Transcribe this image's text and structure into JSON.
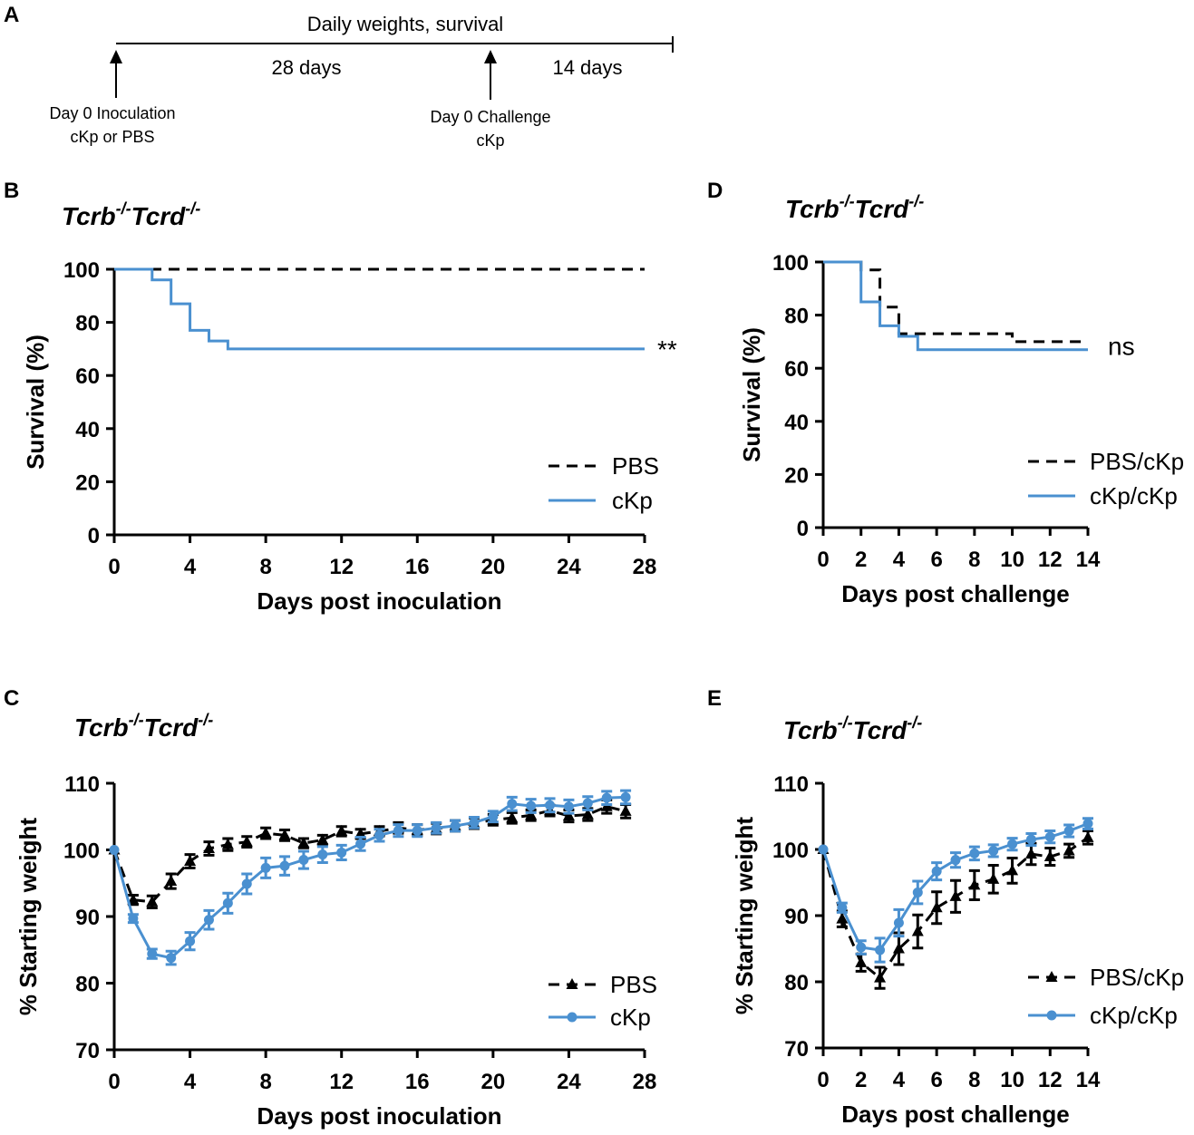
{
  "timeline": {
    "letter": "A",
    "top_label": "Daily weights, survival",
    "segment1_label": "28 days",
    "segment2_label": "14 days",
    "arrow1_line1": "Day 0 Inoculation",
    "arrow1_line2": "cKp or PBS",
    "arrow2_line1": "Day 0 Challenge",
    "arrow2_line2": "cKp"
  },
  "chart_data": [
    {
      "id": "B",
      "letter": "B",
      "type": "line",
      "style": "step",
      "title": {
        "main": "Tcrb",
        "sup1": "-/-",
        "main2": "Tcrd",
        "sup2": "-/-"
      },
      "xlabel": "Days post inoculation",
      "ylabel": "Survival (%)",
      "xlim": [
        0,
        28
      ],
      "ylim": [
        0,
        100
      ],
      "xticks": [
        0,
        4,
        8,
        12,
        16,
        20,
        24,
        28
      ],
      "yticks": [
        0,
        20,
        40,
        60,
        80,
        100
      ],
      "annotation": "**",
      "legend_position": "bottom-right",
      "series": [
        {
          "name": "PBS",
          "color": "#000000",
          "dashed": true,
          "x": [
            0,
            28
          ],
          "y": [
            100,
            100
          ]
        },
        {
          "name": "cKp",
          "color": "#4A90D0",
          "dashed": false,
          "x": [
            0,
            2,
            3,
            4,
            5,
            6,
            28
          ],
          "y": [
            100,
            96,
            87,
            77,
            73,
            70,
            70
          ]
        }
      ]
    },
    {
      "id": "D",
      "letter": "D",
      "type": "line",
      "style": "step",
      "title": {
        "main": "Tcrb",
        "sup1": "-/-",
        "main2": "Tcrd",
        "sup2": "-/-"
      },
      "xlabel": "Days post challenge",
      "ylabel": "Survival (%)",
      "xlim": [
        0,
        14
      ],
      "ylim": [
        0,
        100
      ],
      "xticks": [
        0,
        2,
        4,
        6,
        8,
        10,
        12,
        14
      ],
      "yticks": [
        0,
        20,
        40,
        60,
        80,
        100
      ],
      "annotation": "ns",
      "legend_position": "bottom-right",
      "series": [
        {
          "name": "PBS/cKp",
          "color": "#000000",
          "dashed": true,
          "x": [
            0,
            2,
            3,
            4,
            10,
            14
          ],
          "y": [
            100,
            97,
            83,
            73,
            70,
            70
          ]
        },
        {
          "name": "cKp/cKp",
          "color": "#4A90D0",
          "dashed": false,
          "x": [
            0,
            2,
            3,
            4,
            5,
            14
          ],
          "y": [
            100,
            85,
            76,
            72,
            67,
            67
          ]
        }
      ]
    },
    {
      "id": "C",
      "letter": "C",
      "type": "line",
      "style": "errorbar",
      "title": {
        "main": "Tcrb",
        "sup1": "-/-",
        "main2": "Tcrd",
        "sup2": "-/-"
      },
      "xlabel": "Days post inoculation",
      "ylabel": "% Starting weight",
      "xlim": [
        0,
        28
      ],
      "ylim": [
        70,
        110
      ],
      "xticks": [
        0,
        4,
        8,
        12,
        16,
        20,
        24,
        28
      ],
      "yticks": [
        70,
        80,
        90,
        100,
        110
      ],
      "legend_position": "bottom-right",
      "series": [
        {
          "name": "PBS",
          "color": "#000000",
          "dashed": true,
          "marker": "triangle",
          "x": [
            0,
            1,
            2,
            3,
            4,
            5,
            6,
            7,
            8,
            9,
            10,
            11,
            12,
            13,
            14,
            15,
            16,
            17,
            18,
            19,
            20,
            21,
            22,
            23,
            24,
            25,
            26,
            27
          ],
          "y": [
            100,
            92.5,
            92.2,
            95.3,
            98.3,
            100.2,
            100.8,
            101.2,
            102.5,
            102.2,
            101.0,
            101.5,
            102.8,
            102.4,
            102.8,
            103.3,
            103.0,
            103.2,
            103.6,
            104.0,
            104.5,
            104.8,
            105.2,
            105.9,
            105.1,
            105.3,
            106.5,
            105.8
          ],
          "err": [
            0,
            0.7,
            0.9,
            1.1,
            1.0,
            1.0,
            0.9,
            0.8,
            0.8,
            0.8,
            0.7,
            0.7,
            0.7,
            0.7,
            0.7,
            0.8,
            0.8,
            0.8,
            0.8,
            0.8,
            0.8,
            0.8,
            0.8,
            0.8,
            0.9,
            0.9,
            1.0,
            1.0
          ]
        },
        {
          "name": "cKp",
          "color": "#4A90D0",
          "dashed": false,
          "marker": "circle",
          "x": [
            0,
            1,
            2,
            3,
            4,
            5,
            6,
            7,
            8,
            9,
            10,
            11,
            12,
            13,
            14,
            15,
            16,
            17,
            18,
            19,
            20,
            21,
            22,
            23,
            24,
            25,
            26,
            27
          ],
          "y": [
            100,
            89.7,
            84.4,
            83.8,
            86.3,
            89.5,
            92.0,
            94.9,
            97.3,
            97.6,
            98.5,
            99.3,
            99.6,
            100.9,
            102.2,
            102.9,
            102.9,
            103.3,
            103.6,
            104.1,
            105.0,
            106.9,
            106.6,
            106.7,
            106.5,
            107.0,
            107.8,
            107.9
          ],
          "err": [
            0,
            0.6,
            0.7,
            1.0,
            1.3,
            1.4,
            1.5,
            1.5,
            1.5,
            1.4,
            1.3,
            1.2,
            1.1,
            1.0,
            0.9,
            0.9,
            0.9,
            0.8,
            0.8,
            0.8,
            0.8,
            1.0,
            1.0,
            1.0,
            1.0,
            1.0,
            1.0,
            1.0
          ]
        }
      ]
    },
    {
      "id": "E",
      "letter": "E",
      "type": "line",
      "style": "errorbar",
      "title": {
        "main": "Tcrb",
        "sup1": "-/-",
        "main2": "Tcrd",
        "sup2": "-/-"
      },
      "xlabel": "Days post challenge",
      "ylabel": "% Starting weight",
      "xlim": [
        0,
        14
      ],
      "ylim": [
        70,
        110
      ],
      "xticks": [
        0,
        2,
        4,
        6,
        8,
        10,
        12,
        14
      ],
      "yticks": [
        70,
        80,
        90,
        100,
        110
      ],
      "legend_position": "bottom-right",
      "series": [
        {
          "name": "PBS/cKp",
          "color": "#000000",
          "dashed": true,
          "marker": "triangle",
          "x": [
            0,
            1,
            2,
            3,
            4,
            5,
            6,
            7,
            8,
            9,
            10,
            11,
            12,
            13,
            14
          ],
          "y": [
            100,
            89.5,
            82.9,
            80.6,
            85.0,
            87.6,
            91.2,
            92.9,
            94.6,
            95.5,
            96.8,
            99.3,
            98.9,
            99.8,
            101.8
          ],
          "err": [
            0,
            1.2,
            1.3,
            1.6,
            2.4,
            2.5,
            2.4,
            2.4,
            2.2,
            2.1,
            1.9,
            1.6,
            1.3,
            1.0,
            1.0
          ]
        },
        {
          "name": "cKp/cKp",
          "color": "#4A90D0",
          "dashed": false,
          "marker": "circle",
          "x": [
            0,
            1,
            2,
            3,
            4,
            5,
            6,
            7,
            8,
            9,
            10,
            11,
            12,
            13,
            14
          ],
          "y": [
            100,
            91.2,
            85.2,
            84.8,
            88.9,
            93.5,
            96.7,
            98.4,
            99.4,
            99.8,
            100.8,
            101.5,
            101.9,
            102.8,
            103.9
          ],
          "err": [
            0,
            0.7,
            1.0,
            1.8,
            2.0,
            1.7,
            1.3,
            1.1,
            1.0,
            0.9,
            0.9,
            0.9,
            0.9,
            0.9,
            0.8
          ]
        }
      ]
    }
  ]
}
